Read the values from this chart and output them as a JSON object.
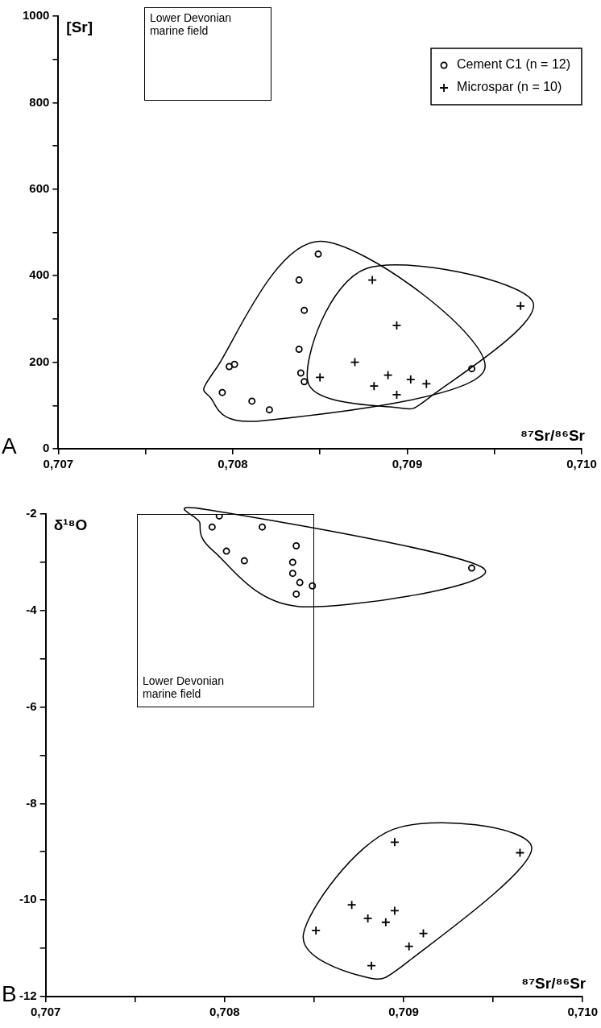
{
  "chart_data": [
    {
      "type": "scatter",
      "xlabel": "⁸⁷Sr/⁸⁶Sr",
      "ylabel": "[Sr]",
      "legend": "top right",
      "xlim": [
        0.707,
        0.71
      ],
      "xticks": [
        {
          "value": 0.707,
          "label": "0,707"
        },
        {
          "value": 0.7075,
          "label": null
        },
        {
          "value": 0.708,
          "label": "0,708"
        },
        {
          "value": 0.7085,
          "label": null
        },
        {
          "value": 0.709,
          "label": "0,709"
        },
        {
          "value": 0.7095,
          "label": null
        },
        {
          "value": 0.71,
          "label": "0,710"
        }
      ],
      "ylim": [
        0,
        1000
      ],
      "yticks": [
        0,
        {
          "value": 100,
          "label": null
        },
        200,
        {
          "value": 300,
          "label": null
        },
        400,
        {
          "value": 500,
          "label": null
        },
        600,
        {
          "value": 700,
          "label": null
        },
        800,
        {
          "value": 900,
          "label": null
        },
        1000
      ],
      "annotations": [
        "A",
        "Lower Devonian marine field"
      ],
      "series": [
        {
          "name": "Cement C1 (n = 12)",
          "color": "#000000",
          "marker": "circle",
          "x": [
            0.70849,
            0.70838,
            0.70841,
            0.70838,
            0.70798,
            0.70801,
            0.70839,
            0.70841,
            0.70794,
            0.70811,
            0.70821,
            0.70937
          ],
          "values": [
            450,
            390,
            320,
            230,
            190,
            195,
            175,
            155,
            130,
            110,
            90,
            185
          ]
        },
        {
          "name": "Microspar (n = 10)",
          "color": "#000000",
          "marker": "cross",
          "x": [
            0.7088,
            0.70965,
            0.70894,
            0.7087,
            0.7085,
            0.70889,
            0.70902,
            0.70911,
            0.70881,
            0.70894
          ],
          "values": [
            390,
            330,
            285,
            200,
            165,
            170,
            160,
            150,
            145,
            125
          ]
        }
      ]
    },
    {
      "type": "scatter",
      "xlabel": "⁸⁷Sr/⁸⁶Sr",
      "ylabel": "δ¹⁸O",
      "xlim": [
        0.707,
        0.71
      ],
      "xticks": [
        {
          "value": 0.707,
          "label": "0,707"
        },
        {
          "value": 0.7075,
          "label": null
        },
        {
          "value": 0.708,
          "label": "0,708"
        },
        {
          "value": 0.7085,
          "label": null
        },
        {
          "value": 0.709,
          "label": "0,709"
        },
        {
          "value": 0.7095,
          "label": null
        },
        {
          "value": 0.71,
          "label": "0,710"
        }
      ],
      "ylim": [
        -12,
        -2
      ],
      "yticks": [
        -12,
        {
          "value": -11,
          "label": null
        },
        -10,
        {
          "value": -9,
          "label": null
        },
        -8,
        {
          "value": -7,
          "label": null
        },
        -6,
        {
          "value": -5,
          "label": null
        },
        -4,
        {
          "value": -3,
          "label": null
        },
        -2
      ],
      "annotations": [
        "B",
        "Lower Devonian marine field"
      ],
      "series": [
        {
          "color": "#000000",
          "marker": "circle",
          "x": [
            0.70797,
            0.70793,
            0.70821,
            0.7084,
            0.70801,
            0.70811,
            0.70838,
            0.70838,
            0.70842,
            0.70849,
            0.7084,
            0.70938
          ],
          "values": [
            -2.04,
            -2.27,
            -2.27,
            -2.66,
            -2.77,
            -2.97,
            -3.0,
            -3.23,
            -3.42,
            -3.49,
            -3.66,
            -3.12
          ]
        },
        {
          "color": "#000000",
          "marker": "cross",
          "x": [
            0.70895,
            0.70965,
            0.70871,
            0.70895,
            0.7088,
            0.7089,
            0.70851,
            0.70911,
            0.70903,
            0.70882
          ],
          "values": [
            -8.8,
            -9.02,
            -10.1,
            -10.22,
            -10.38,
            -10.46,
            -10.63,
            -10.69,
            -10.96,
            -11.36
          ]
        }
      ]
    }
  ]
}
